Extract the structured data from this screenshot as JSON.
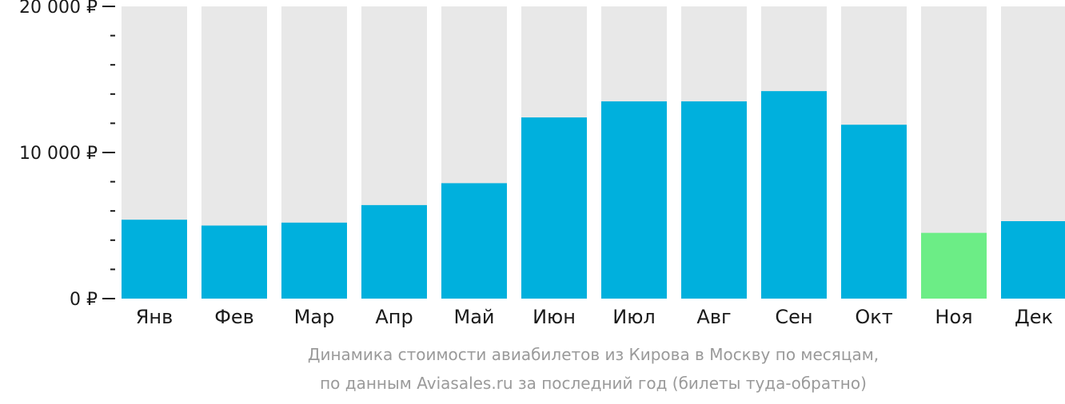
{
  "chart_data": {
    "type": "bar",
    "categories": [
      "Янв",
      "Фев",
      "Мар",
      "Апр",
      "Май",
      "Июн",
      "Июл",
      "Авг",
      "Сен",
      "Окт",
      "Ноя",
      "Дек"
    ],
    "values": [
      5400,
      5000,
      5200,
      6400,
      7900,
      12400,
      13500,
      13500,
      14200,
      11900,
      4500,
      5300
    ],
    "ylim": [
      0,
      20000
    ],
    "y_ticks": [
      {
        "value": 0,
        "label": "0 ₽"
      },
      {
        "value": 10000,
        "label": "10 000 ₽"
      },
      {
        "value": 20000,
        "label": "20 000 ₽"
      }
    ],
    "minor_tick_step": 2000,
    "highlight_index": 10,
    "grid": false,
    "caption_lines": [
      "Динамика стоимости авиабилетов из Кирова в Москву по месяцам,",
      "по данным Aviasales.ru за последний год (билеты туда-обратно)"
    ]
  },
  "colors": {
    "bar": "#00b0dd",
    "bar_highlight": "#6ced86",
    "bar_background": "#e8e8e8",
    "axis": "#1a1a1a",
    "text": "#1a1a1a",
    "caption": "#9a9a9a"
  }
}
